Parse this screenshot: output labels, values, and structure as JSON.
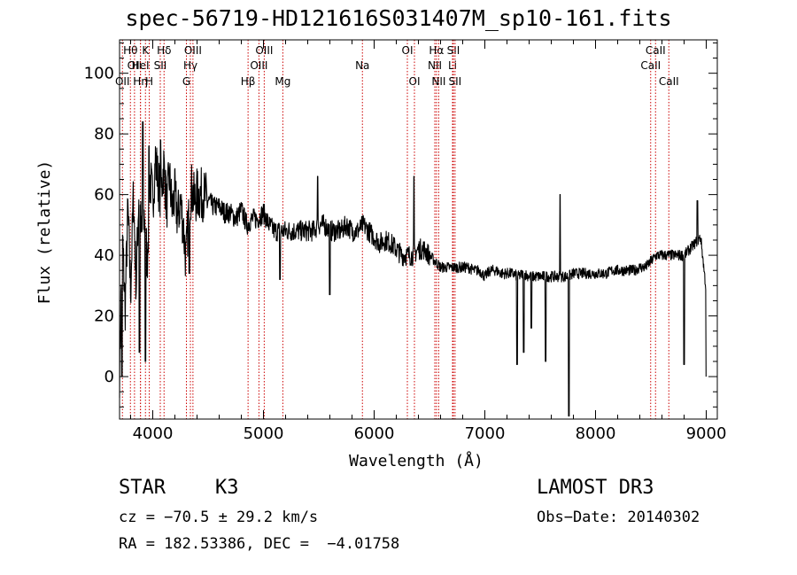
{
  "chart_data": {
    "type": "line",
    "title": "spec-56719-HD121616S031407M_sp10-161.fits",
    "xlabel": "Wavelength (Å)",
    "ylabel": "Flux (relative)",
    "xlim": [
      3700,
      9100
    ],
    "ylim": [
      -14,
      111
    ],
    "xticks": [
      4000,
      5000,
      6000,
      7000,
      8000,
      9000
    ],
    "yticks": [
      0,
      20,
      40,
      60,
      80,
      100
    ],
    "grid": false,
    "series": [
      {
        "x": [
          3700,
          3725,
          3750,
          3775,
          3800,
          3825,
          3850,
          3875,
          3900,
          3925,
          3950,
          3975,
          4000,
          4025,
          4050,
          4075,
          4100,
          4125,
          4150,
          4175,
          4200,
          4225,
          4250,
          4275,
          4300,
          4325,
          4350,
          4375,
          4400,
          4450,
          4500,
          4550,
          4600,
          4650,
          4700,
          4750,
          4800,
          4850,
          4900,
          4950,
          5000,
          5050,
          5100,
          5150,
          5200,
          5250,
          5300,
          5350,
          5400,
          5450,
          5500,
          5550,
          5600,
          5650,
          5700,
          5750,
          5800,
          5850,
          5900,
          5950,
          6000,
          6050,
          6100,
          6150,
          6200,
          6250,
          6300,
          6350,
          6400,
          6450,
          6500,
          6550,
          6600,
          6650,
          6700,
          6750,
          6800,
          6850,
          6900,
          6950,
          7000,
          7050,
          7100,
          7150,
          7200,
          7250,
          7300,
          7350,
          7400,
          7450,
          7500,
          7550,
          7600,
          7650,
          7700,
          7750,
          7800,
          7850,
          7900,
          7950,
          8000,
          8050,
          8100,
          8150,
          8200,
          8250,
          8300,
          8350,
          8400,
          8450,
          8500,
          8550,
          8600,
          8650,
          8700,
          8750,
          8800,
          8850,
          8900,
          8950,
          9000
        ],
        "y": [
          2,
          48,
          22,
          55,
          28,
          60,
          30,
          62,
          45,
          52,
          38,
          66,
          58,
          72,
          64,
          60,
          70,
          56,
          66,
          55,
          60,
          52,
          58,
          50,
          38,
          55,
          62,
          58,
          60,
          60,
          58,
          56,
          56,
          54,
          54,
          52,
          55,
          50,
          52,
          52,
          54,
          50,
          48,
          48,
          48,
          48,
          48,
          48,
          48,
          48,
          50,
          50,
          48,
          48,
          48,
          50,
          48,
          48,
          50,
          48,
          46,
          44,
          45,
          44,
          42,
          40,
          40,
          40,
          42,
          42,
          40,
          38,
          36,
          36,
          36,
          36,
          36,
          36,
          35,
          35,
          33,
          35,
          35,
          34,
          34,
          34,
          33,
          34,
          33,
          33,
          33,
          33,
          33,
          33,
          33,
          33,
          34,
          34,
          34,
          34,
          34,
          34,
          34,
          35,
          35,
          35,
          35,
          35,
          36,
          36,
          38,
          40,
          40,
          40,
          40,
          40,
          40,
          42,
          44,
          46,
          28
        ],
        "dips": [
          {
            "x": 3720,
            "y": 0
          },
          {
            "x": 3880,
            "y": 8
          },
          {
            "x": 3935,
            "y": 5
          },
          {
            "x": 4330,
            "y": 34
          },
          {
            "x": 5150,
            "y": 32
          },
          {
            "x": 5600,
            "y": 27
          },
          {
            "x": 7290,
            "y": 4
          },
          {
            "x": 7350,
            "y": 8
          },
          {
            "x": 7420,
            "y": 16
          },
          {
            "x": 7550,
            "y": 5
          },
          {
            "x": 7760,
            "y": -13
          },
          {
            "x": 8800,
            "y": 4
          },
          {
            "x": 9000,
            "y": 0
          }
        ],
        "peaks": [
          {
            "x": 3910,
            "y": 84
          },
          {
            "x": 3965,
            "y": 76
          },
          {
            "x": 4070,
            "y": 78
          },
          {
            "x": 5490,
            "y": 66
          },
          {
            "x": 6360,
            "y": 66
          },
          {
            "x": 7680,
            "y": 60
          },
          {
            "x": 8920,
            "y": 58
          }
        ]
      }
    ],
    "lines": [
      {
        "wl": 3726,
        "label": "OII",
        "row": 3
      },
      {
        "wl": 3798,
        "label": "Hθ",
        "row": 1
      },
      {
        "wl": 3835,
        "label": "OII",
        "row": 2
      },
      {
        "wl": 3889,
        "label": "Hη",
        "row": 3
      },
      {
        "wl": 3889,
        "label": "HeI",
        "row": 2
      },
      {
        "wl": 3934,
        "label": "K",
        "row": 1
      },
      {
        "wl": 3968,
        "label": "H",
        "row": 3
      },
      {
        "wl": 4068,
        "label": "SII",
        "row": 2
      },
      {
        "wl": 4102,
        "label": "Hδ",
        "row": 1
      },
      {
        "wl": 4304,
        "label": "G",
        "row": 3
      },
      {
        "wl": 4340,
        "label": "Hγ",
        "row": 2
      },
      {
        "wl": 4363,
        "label": "OIII",
        "row": 1
      },
      {
        "wl": 4861,
        "label": "Hβ",
        "row": 3
      },
      {
        "wl": 4959,
        "label": "OIII",
        "row": 2
      },
      {
        "wl": 5007,
        "label": "OIII",
        "row": 1
      },
      {
        "wl": 5175,
        "label": "Mg",
        "row": 3
      },
      {
        "wl": 5894,
        "label": "Na",
        "row": 2
      },
      {
        "wl": 6300,
        "label": "OI",
        "row": 1
      },
      {
        "wl": 6364,
        "label": "OI",
        "row": 3
      },
      {
        "wl": 6548,
        "label": "NII",
        "row": 2
      },
      {
        "wl": 6563,
        "label": "Hα",
        "row": 1
      },
      {
        "wl": 6583,
        "label": "NII",
        "row": 3
      },
      {
        "wl": 6708,
        "label": "Li",
        "row": 2
      },
      {
        "wl": 6716,
        "label": "SII",
        "row": 1
      },
      {
        "wl": 6731,
        "label": "SII",
        "row": 3
      },
      {
        "wl": 8498,
        "label": "CaII",
        "row": 2
      },
      {
        "wl": 8542,
        "label": "CaII",
        "row": 1
      },
      {
        "wl": 8662,
        "label": "CaII",
        "row": 3
      }
    ]
  },
  "info": {
    "class": "STAR",
    "subclass": "K3",
    "survey": "LAMOST DR3",
    "cz": "cz = −70.5 ± 29.2 km/s",
    "obsdate": "Obs−Date: 20140302",
    "radec": "RA = 182.53386, DEC =  −4.01758"
  },
  "colors": {
    "spectrum": "#000000",
    "line_marker": "#cc0000"
  }
}
